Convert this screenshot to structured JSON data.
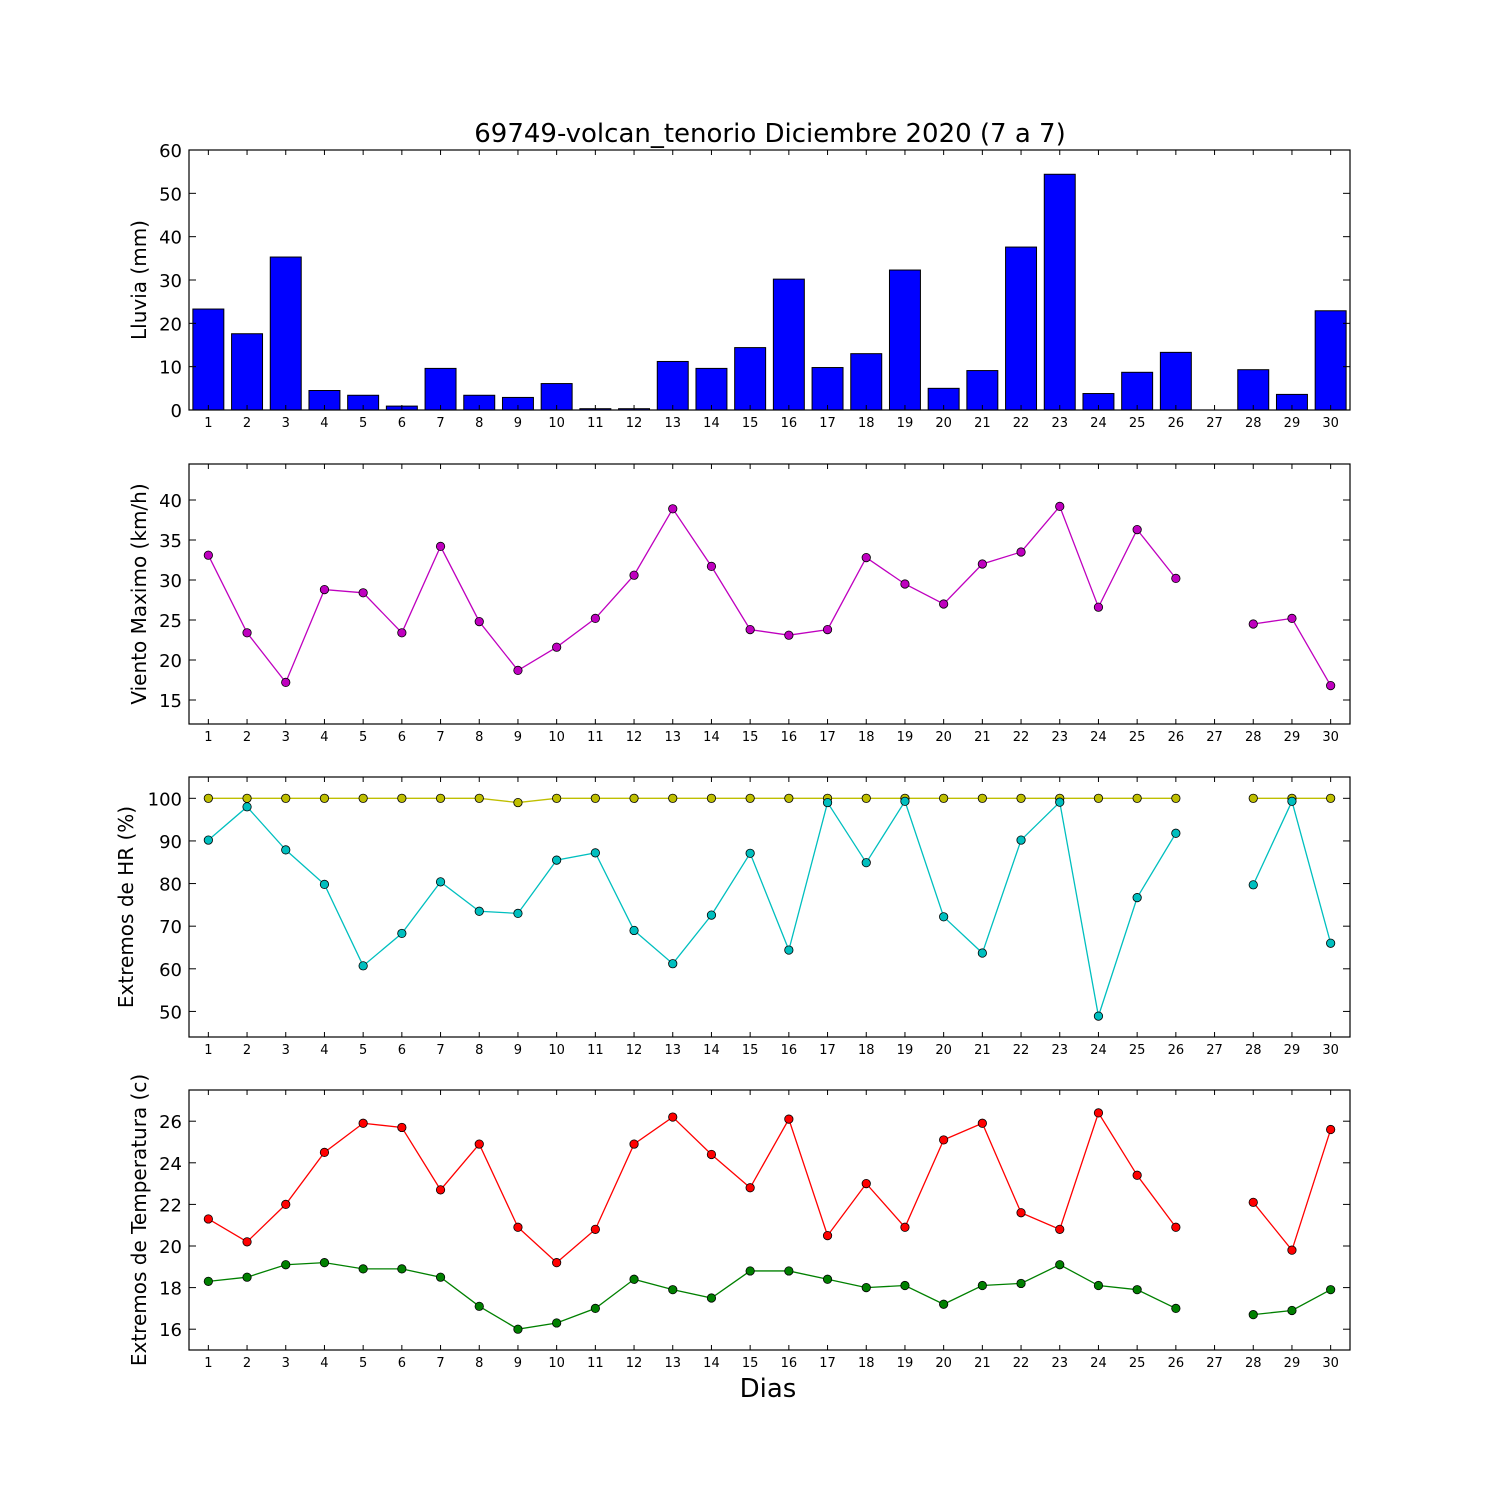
{
  "chart_data": [
    {
      "type": "bar",
      "title": "69749-volcan_tenorio Diciembre 2020  (7 a 7)",
      "xlabel": "",
      "ylabel": "Lluvia (mm)",
      "ylim": [
        0,
        60
      ],
      "yticks": [
        "0",
        "10",
        "20",
        "30",
        "40",
        "50",
        "60"
      ],
      "categories": [
        "1",
        "2",
        "3",
        "4",
        "5",
        "6",
        "7",
        "8",
        "9",
        "10",
        "11",
        "12",
        "13",
        "14",
        "15",
        "16",
        "17",
        "18",
        "19",
        "20",
        "21",
        "22",
        "23",
        "24",
        "25",
        "26",
        "27",
        "28",
        "29",
        "30"
      ],
      "values": [
        23.3,
        17.6,
        35.3,
        4.5,
        3.4,
        0.9,
        9.6,
        3.4,
        2.9,
        6.1,
        0.3,
        0.3,
        11.2,
        9.6,
        14.4,
        30.2,
        9.8,
        13.0,
        32.3,
        5.0,
        9.1,
        37.6,
        54.4,
        3.8,
        8.7,
        13.3,
        0.0,
        9.3,
        3.6,
        22.9
      ],
      "color": "#0000ff",
      "grid": false
    },
    {
      "type": "line",
      "xlabel": "",
      "ylabel": "Viento Maximo (km/h)",
      "ylim": [
        12,
        44.5
      ],
      "yticks": [
        "15",
        "20",
        "25",
        "30",
        "35",
        "40"
      ],
      "categories": [
        "1",
        "2",
        "3",
        "4",
        "5",
        "6",
        "7",
        "8",
        "9",
        "10",
        "11",
        "12",
        "13",
        "14",
        "15",
        "16",
        "17",
        "18",
        "19",
        "20",
        "21",
        "22",
        "23",
        "24",
        "25",
        "26",
        "27",
        "28",
        "29",
        "30"
      ],
      "series": [
        {
          "color": "#bf00bf",
          "values": [
            33.1,
            23.4,
            17.2,
            28.8,
            28.4,
            23.4,
            34.2,
            24.8,
            18.7,
            21.6,
            25.2,
            30.6,
            38.9,
            31.7,
            23.8,
            23.1,
            23.8,
            32.8,
            29.5,
            27.0,
            32.0,
            33.5,
            39.2,
            26.6,
            36.3,
            30.2,
            null,
            24.5,
            25.2,
            16.8
          ]
        }
      ],
      "grid": false
    },
    {
      "type": "line",
      "xlabel": "",
      "ylabel": "Extremos de HR (%)",
      "ylim": [
        44,
        105
      ],
      "yticks": [
        "50",
        "60",
        "70",
        "80",
        "90",
        "100"
      ],
      "categories": [
        "1",
        "2",
        "3",
        "4",
        "5",
        "6",
        "7",
        "8",
        "9",
        "10",
        "11",
        "12",
        "13",
        "14",
        "15",
        "16",
        "17",
        "18",
        "19",
        "20",
        "21",
        "22",
        "23",
        "24",
        "25",
        "26",
        "27",
        "28",
        "29",
        "30"
      ],
      "series": [
        {
          "color": "#bfbf00",
          "values": [
            100,
            100,
            100,
            100,
            100,
            100,
            100,
            100,
            99,
            100,
            100,
            100,
            100,
            100,
            100,
            100,
            100,
            100,
            100,
            100,
            100,
            100,
            100,
            100,
            100,
            100,
            null,
            100,
            100,
            100
          ]
        },
        {
          "color": "#00bfbf",
          "values": [
            90.2,
            98,
            87.9,
            79.8,
            60.7,
            68.3,
            80.4,
            73.5,
            73,
            85.5,
            87.2,
            69,
            61.2,
            72.6,
            87.1,
            64.4,
            99,
            84.9,
            99.3,
            72.2,
            63.7,
            90.2,
            99.1,
            48.9,
            76.7,
            91.8,
            null,
            79.7,
            99.3,
            66
          ]
        }
      ],
      "grid": false
    },
    {
      "type": "line",
      "xlabel": "Dias",
      "ylabel": "Extremos de Temperatura (c)",
      "ylim": [
        15,
        27.5
      ],
      "yticks": [
        "16",
        "18",
        "20",
        "22",
        "24",
        "26"
      ],
      "categories": [
        "1",
        "2",
        "3",
        "4",
        "5",
        "6",
        "7",
        "8",
        "9",
        "10",
        "11",
        "12",
        "13",
        "14",
        "15",
        "16",
        "17",
        "18",
        "19",
        "20",
        "21",
        "22",
        "23",
        "24",
        "25",
        "26",
        "27",
        "28",
        "29",
        "30"
      ],
      "series": [
        {
          "color": "#ff0000",
          "values": [
            21.3,
            20.2,
            22.0,
            24.5,
            25.9,
            25.7,
            22.7,
            24.9,
            20.9,
            19.2,
            20.8,
            24.9,
            26.2,
            24.4,
            22.8,
            26.1,
            20.5,
            23.0,
            20.9,
            25.1,
            25.9,
            21.6,
            20.8,
            26.4,
            23.4,
            20.9,
            null,
            22.1,
            19.8,
            25.6
          ]
        },
        {
          "color": "#008000",
          "values": [
            18.3,
            18.5,
            19.1,
            19.2,
            18.9,
            18.9,
            18.5,
            17.1,
            16.0,
            16.3,
            17.0,
            18.4,
            17.9,
            17.5,
            18.8,
            18.8,
            18.4,
            18.0,
            18.1,
            17.2,
            18.1,
            18.2,
            19.1,
            18.1,
            17.9,
            17.0,
            null,
            16.7,
            16.9,
            17.9
          ]
        }
      ],
      "grid": false
    }
  ]
}
